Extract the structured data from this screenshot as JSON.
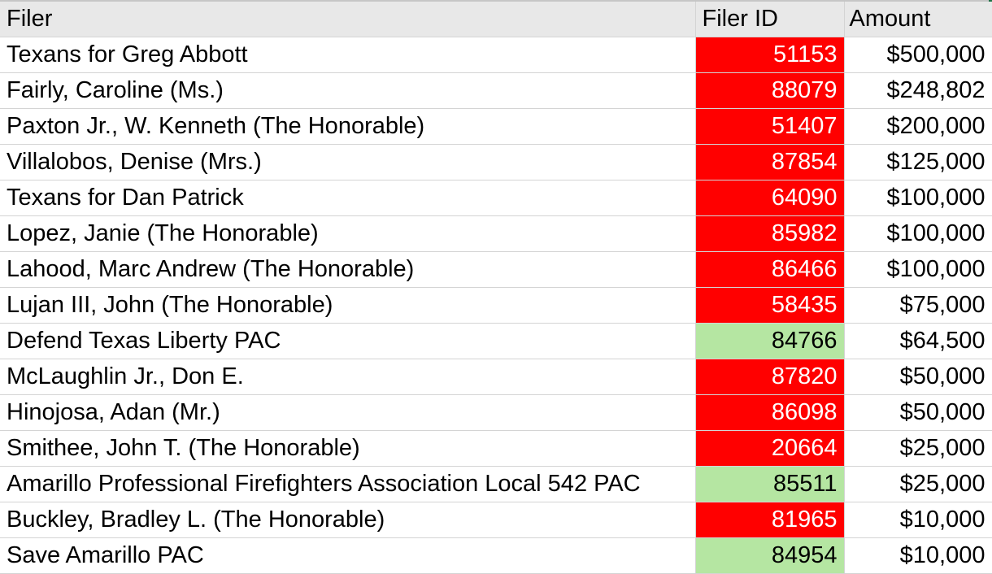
{
  "colors": {
    "red_fill": "#ff0000",
    "green_fill": "#b5e6a2",
    "header_fill": "#e8e8e8"
  },
  "headers": {
    "filer": "Filer",
    "filer_id": "Filer ID",
    "amount": "Amount"
  },
  "rows": [
    {
      "filer": "Texans for Greg Abbott",
      "filer_id": "51153",
      "amount": "$500,000",
      "highlight": "red"
    },
    {
      "filer": "Fairly, Caroline (Ms.)",
      "filer_id": "88079",
      "amount": "$248,802",
      "highlight": "red"
    },
    {
      "filer": "Paxton Jr., W. Kenneth (The Honorable)",
      "filer_id": "51407",
      "amount": "$200,000",
      "highlight": "red"
    },
    {
      "filer": "Villalobos, Denise (Mrs.)",
      "filer_id": "87854",
      "amount": "$125,000",
      "highlight": "red"
    },
    {
      "filer": "Texans for Dan Patrick",
      "filer_id": "64090",
      "amount": "$100,000",
      "highlight": "red"
    },
    {
      "filer": "Lopez, Janie (The Honorable)",
      "filer_id": "85982",
      "amount": "$100,000",
      "highlight": "red"
    },
    {
      "filer": "Lahood, Marc Andrew (The Honorable)",
      "filer_id": "86466",
      "amount": "$100,000",
      "highlight": "red"
    },
    {
      "filer": "Lujan III, John (The Honorable)",
      "filer_id": "58435",
      "amount": "$75,000",
      "highlight": "red"
    },
    {
      "filer": "Defend Texas Liberty PAC",
      "filer_id": "84766",
      "amount": "$64,500",
      "highlight": "green"
    },
    {
      "filer": "McLaughlin Jr., Don E.",
      "filer_id": "87820",
      "amount": "$50,000",
      "highlight": "red"
    },
    {
      "filer": "Hinojosa, Adan (Mr.)",
      "filer_id": "86098",
      "amount": "$50,000",
      "highlight": "red"
    },
    {
      "filer": "Smithee, John T. (The Honorable)",
      "filer_id": "20664",
      "amount": "$25,000",
      "highlight": "red"
    },
    {
      "filer": "Amarillo Professional Firefighters Association Local 542 PAC",
      "filer_id": "85511",
      "amount": "$25,000",
      "highlight": "green"
    },
    {
      "filer": "Buckley, Bradley L. (The Honorable)",
      "filer_id": "81965",
      "amount": "$10,000",
      "highlight": "red"
    },
    {
      "filer": "Save Amarillo PAC",
      "filer_id": "84954",
      "amount": "$10,000",
      "highlight": "green"
    }
  ]
}
